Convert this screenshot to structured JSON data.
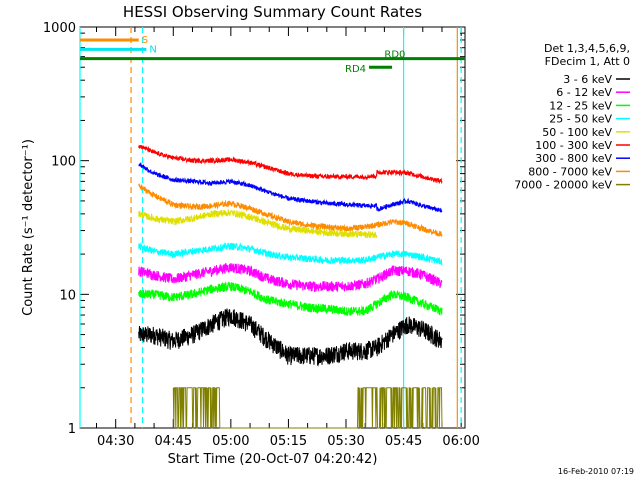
{
  "chart_data": {
    "type": "line",
    "title": "HESSI Observing Summary Count Rates",
    "xlabel": "Start Time (20-Oct-07 04:20:42)",
    "ylabel": "Count Rate (s⁻¹ detector⁻¹)",
    "y_scale": "log",
    "ylim": [
      1,
      1000
    ],
    "xlim": [
      "04:20:42",
      "06:01:00"
    ],
    "x_ticks": [
      "04:30",
      "04:45",
      "05:00",
      "05:15",
      "05:30",
      "05:45",
      "06:00"
    ],
    "y_ticks": [
      "1",
      "10",
      "100",
      "1000"
    ],
    "legend_header": [
      "Det 1,3,4,5,6,9,",
      "FDecim 1, Att 0"
    ],
    "legend_placement": "right",
    "series": [
      {
        "name": "3 - 6 keV",
        "color": "#000000",
        "x": [
          "04:36",
          "04:40",
          "04:45",
          "04:50",
          "04:55",
          "05:00",
          "05:05",
          "05:10",
          "05:15",
          "05:20",
          "05:25",
          "05:30",
          "05:35",
          "05:38",
          "05:42",
          "05:46",
          "05:50",
          "05:55"
        ],
        "values": [
          5,
          5,
          4.5,
          5,
          6,
          7,
          6,
          4.5,
          3.5,
          3.5,
          3.5,
          3.8,
          3.8,
          4,
          5,
          6,
          5.5,
          4.5
        ]
      },
      {
        "name": "6 - 12 keV",
        "color": "#ff00ff",
        "x": [
          "04:36",
          "04:40",
          "04:45",
          "04:50",
          "04:55",
          "05:00",
          "05:05",
          "05:10",
          "05:15",
          "05:20",
          "05:25",
          "05:30",
          "05:35",
          "05:38",
          "05:42",
          "05:46",
          "05:50",
          "05:55"
        ],
        "values": [
          15,
          14,
          13,
          14,
          15,
          16,
          15,
          13,
          12,
          11.5,
          11.5,
          11.5,
          12,
          13,
          15,
          15,
          14,
          12
        ]
      },
      {
        "name": "12 - 25 keV",
        "color": "#00ff00",
        "x": [
          "04:36",
          "04:40",
          "04:45",
          "04:50",
          "04:55",
          "05:00",
          "05:05",
          "05:10",
          "05:15",
          "05:20",
          "05:25",
          "05:30",
          "05:35",
          "05:38",
          "05:42",
          "05:46",
          "05:50",
          "05:55"
        ],
        "values": [
          10,
          10,
          9.5,
          10,
          11,
          11.5,
          10.5,
          9,
          8.5,
          8,
          7.8,
          7.5,
          7.5,
          8.5,
          10,
          9.5,
          8.5,
          7.5
        ]
      },
      {
        "name": "25 - 50 keV",
        "color": "#00ffff",
        "x": [
          "04:36",
          "04:40",
          "04:45",
          "04:50",
          "04:55",
          "05:00",
          "05:05",
          "05:10",
          "05:15",
          "05:20",
          "05:25",
          "05:30",
          "05:35",
          "05:38",
          "05:42",
          "05:46",
          "05:50",
          "05:55"
        ],
        "values": [
          23,
          21,
          20,
          21,
          22,
          23,
          22,
          20,
          19,
          18.5,
          18,
          18,
          18,
          19,
          20,
          20,
          19,
          17.5
        ]
      },
      {
        "name": "50 - 100 keV",
        "color": "#e0e000",
        "x": [
          "04:36",
          "04:40",
          "04:45",
          "04:50",
          "04:55",
          "05:00",
          "05:05",
          "05:10",
          "05:15",
          "05:20",
          "05:25",
          "05:30",
          "05:35",
          "05:38"
        ],
        "values": [
          40,
          37,
          35,
          37,
          40,
          41,
          38,
          34,
          31,
          30,
          29,
          28.5,
          28,
          28
        ]
      },
      {
        "name": "100 - 300 keV",
        "color": "#ff0000",
        "x": [
          "04:36",
          "04:40",
          "04:45",
          "04:50",
          "04:55",
          "05:00",
          "05:05",
          "05:10",
          "05:15",
          "05:20",
          "05:25",
          "05:30",
          "05:35",
          "05:38",
          "05:38",
          "05:42",
          "05:46",
          "05:50",
          "05:55"
        ],
        "values": [
          130,
          115,
          105,
          100,
          100,
          102,
          97,
          88,
          80,
          77,
          76,
          76,
          76,
          77,
          82,
          82,
          81,
          76,
          70
        ]
      },
      {
        "name": "300 - 800 keV",
        "color": "#0000ff",
        "x": [
          "04:36",
          "04:40",
          "04:45",
          "04:50",
          "04:55",
          "05:00",
          "05:05",
          "05:10",
          "05:15",
          "05:20",
          "05:25",
          "05:30",
          "05:35",
          "05:38",
          "05:38",
          "05:42",
          "05:46",
          "05:50",
          "05:55"
        ],
        "values": [
          95,
          80,
          72,
          70,
          68,
          70,
          65,
          58,
          52,
          50,
          48,
          47,
          46,
          46,
          43,
          47,
          50,
          46,
          42
        ]
      },
      {
        "name": "800 - 7000 keV",
        "color": "#ff8c00",
        "x": [
          "04:36",
          "04:40",
          "04:45",
          "04:50",
          "04:55",
          "05:00",
          "05:05",
          "05:10",
          "05:15",
          "05:20",
          "05:25",
          "05:30",
          "05:35",
          "05:38",
          "05:42",
          "05:46",
          "05:50",
          "05:55"
        ],
        "values": [
          65,
          55,
          47,
          45,
          46,
          48,
          44,
          39,
          35,
          33,
          32,
          31,
          32,
          33,
          35,
          34,
          31,
          28
        ]
      },
      {
        "name": "7000 - 20000 keV",
        "color": "#808000",
        "x": [
          "04:45",
          "04:50",
          "04:55",
          "05:00",
          "05:05",
          "05:10",
          "05:15",
          "05:20",
          "05:25",
          "05:30",
          "05:35",
          "05:40",
          "05:45",
          "05:50",
          "05:55"
        ],
        "values": [
          2,
          2,
          2,
          1,
          1,
          1,
          1,
          1,
          1,
          1,
          2,
          2,
          2,
          2,
          2
        ]
      }
    ],
    "annotations": [
      {
        "label": "S",
        "color": "#ff8c00",
        "x_start": "04:20:42",
        "x_end": "04:36",
        "level": 800
      },
      {
        "label": "N",
        "color": "#00e5ee",
        "x_start": "04:20:42",
        "x_end": "04:38",
        "level": 680
      },
      {
        "label": "RD0",
        "color": "#008000",
        "x_start": "04:20:42",
        "x_end": "06:01:00",
        "level": 580
      },
      {
        "label": "RD4",
        "color": "#008000",
        "x_start": "05:36",
        "x_end": "05:42",
        "level": 500
      }
    ],
    "vertical_markers": [
      {
        "x": "04:20:42",
        "color": "#00ffff",
        "style": "solid"
      },
      {
        "x": "04:34",
        "color": "#ff8c00",
        "style": "dashed"
      },
      {
        "x": "04:37",
        "color": "#00ffff",
        "style": "dashed"
      },
      {
        "x": "05:45",
        "color": "#00ffff",
        "style": "solid"
      },
      {
        "x": "05:59",
        "color": "#ff8c00",
        "style": "solid"
      },
      {
        "x": "06:00",
        "color": "#00ffff",
        "style": "dashed"
      }
    ]
  },
  "footer": "16-Feb-2010 07:19"
}
